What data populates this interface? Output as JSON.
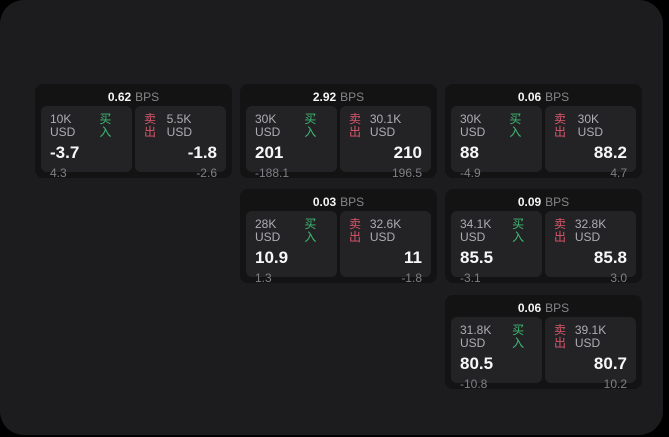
{
  "labels": {
    "bps_unit": "BPS",
    "buy": "买入",
    "sell": "卖出"
  },
  "colors": {
    "background": "#000000",
    "surface": "#1c1c1e",
    "card": "#131314",
    "pane": "#232326",
    "buy_green": "#3fbb73",
    "sell_red": "#d9566a"
  },
  "cards": [
    {
      "bps": "0.62",
      "buy": {
        "amount": "10K USD",
        "value": "-3.7",
        "delta": "4.3"
      },
      "sell": {
        "amount": "5.5K USD",
        "value": "-1.8",
        "delta": "-2.6"
      }
    },
    {
      "bps": "2.92",
      "buy": {
        "amount": "30K USD",
        "value": "201",
        "delta": "-188.1"
      },
      "sell": {
        "amount": "30.1K USD",
        "value": "210",
        "delta": "196.5"
      }
    },
    {
      "bps": "0.06",
      "buy": {
        "amount": "30K USD",
        "value": "88",
        "delta": "-4.9"
      },
      "sell": {
        "amount": "30K USD",
        "value": "88.2",
        "delta": "4.7"
      }
    },
    {
      "bps": "0.03",
      "buy": {
        "amount": "28K USD",
        "value": "10.9",
        "delta": "1.3"
      },
      "sell": {
        "amount": "32.6K USD",
        "value": "11",
        "delta": "-1.8"
      }
    },
    {
      "bps": "0.09",
      "buy": {
        "amount": "34.1K USD",
        "value": "85.5",
        "delta": "-3.1"
      },
      "sell": {
        "amount": "32.8K USD",
        "value": "85.8",
        "delta": "3.0"
      }
    },
    {
      "bps": "0.06",
      "buy": {
        "amount": "31.8K USD",
        "value": "80.5",
        "delta": "-10.8"
      },
      "sell": {
        "amount": "39.1K USD",
        "value": "80.7",
        "delta": "10.2"
      }
    }
  ]
}
